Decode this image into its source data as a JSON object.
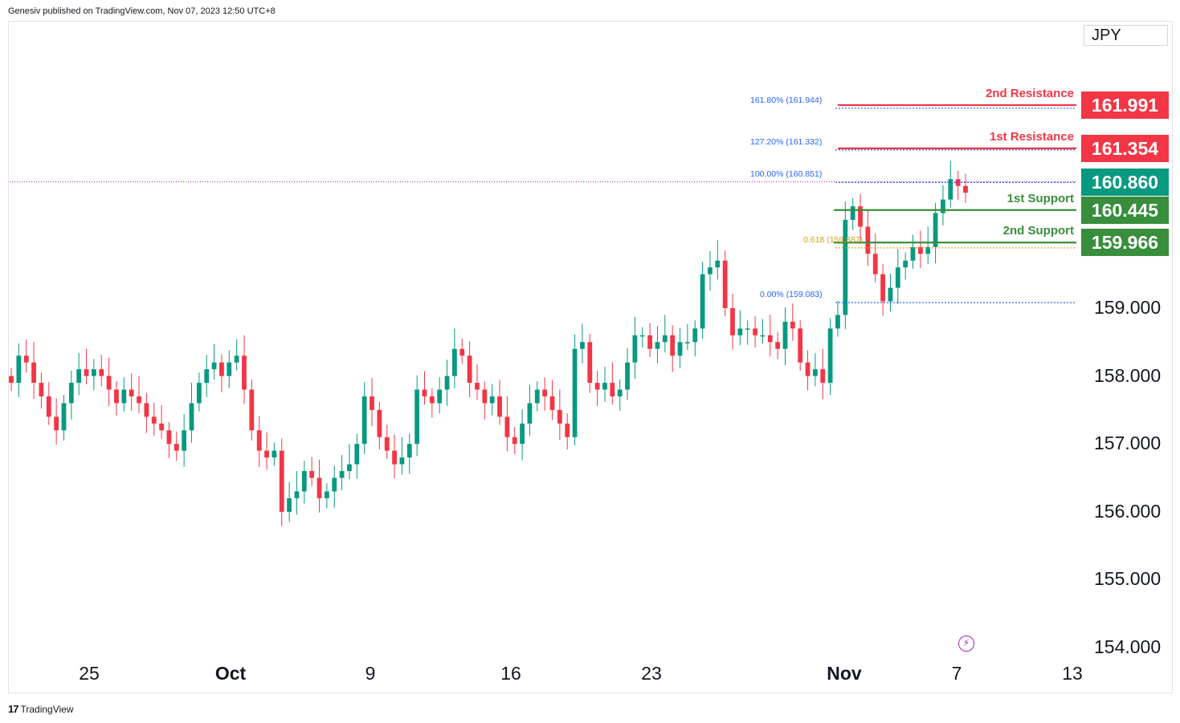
{
  "header": {
    "publisher_text": "Genesiv published on TradingView.com, Nov 07, 2023 12:50 UTC+8"
  },
  "footer": {
    "logo_text": "TradingView",
    "logo_mark": "17"
  },
  "currency": "JPY",
  "colors": {
    "up": "#089981",
    "down": "#f23645",
    "resistance": "#f23645",
    "support": "#388e3c",
    "fib": "#2962ff",
    "fib_gold": "#d4a017",
    "current": "#089981"
  },
  "chart_data": {
    "type": "candlestick",
    "ylim": [
      153.7,
      163.4
    ],
    "y_ticks": [
      "159.000",
      "158.000",
      "157.000",
      "156.000",
      "155.000",
      "154.000"
    ],
    "y_tick_values": [
      159,
      158,
      157,
      156,
      155,
      154
    ],
    "x_ticks": [
      "25",
      "Oct",
      "9",
      "16",
      "23",
      "Nov",
      "7",
      "13"
    ],
    "x_tick_bold": [
      false,
      true,
      false,
      false,
      false,
      true,
      false,
      false
    ],
    "current_price": "160.860",
    "current_price_value": 160.86,
    "levels": [
      {
        "name": "2nd Resistance",
        "value": "161.991",
        "numeric": 161.991,
        "kind": "resistance"
      },
      {
        "name": "1st Resistance",
        "value": "161.354",
        "numeric": 161.354,
        "kind": "resistance"
      },
      {
        "name": "1st Support",
        "value": "160.445",
        "numeric": 160.445,
        "kind": "support"
      },
      {
        "name": "2nd Support",
        "value": "159.966",
        "numeric": 159.966,
        "kind": "support"
      }
    ],
    "fibonacci": [
      {
        "label": "161.80% (161.944)",
        "value": 161.944
      },
      {
        "label": "127.20% (161.332)",
        "value": 161.332
      },
      {
        "label": "100.00% (160.851)",
        "value": 160.851
      },
      {
        "label": "0.618 (159.887)",
        "value": 159.887
      },
      {
        "label": "0.00% (159.083)",
        "value": 159.083
      }
    ],
    "closes": [
      157.9,
      158.3,
      158.2,
      157.9,
      157.7,
      157.4,
      157.2,
      157.6,
      157.9,
      158.1,
      158.0,
      158.1,
      158.0,
      157.8,
      157.6,
      157.8,
      157.7,
      157.6,
      157.4,
      157.3,
      157.2,
      157.0,
      156.9,
      157.2,
      157.6,
      157.9,
      158.1,
      158.2,
      158.0,
      158.2,
      158.3,
      157.8,
      157.2,
      156.9,
      156.8,
      156.9,
      156.0,
      156.2,
      156.3,
      156.6,
      156.5,
      156.2,
      156.3,
      156.5,
      156.6,
      156.7,
      157.0,
      157.7,
      157.5,
      157.1,
      156.9,
      156.7,
      156.8,
      157.0,
      157.8,
      157.7,
      157.6,
      157.8,
      158.0,
      158.4,
      158.3,
      157.9,
      157.8,
      157.6,
      157.7,
      157.4,
      157.1,
      157.0,
      157.3,
      157.6,
      157.8,
      157.7,
      157.5,
      157.3,
      157.1,
      158.4,
      158.5,
      157.9,
      157.8,
      157.9,
      157.7,
      157.8,
      158.2,
      158.6,
      158.6,
      158.4,
      158.5,
      158.6,
      158.3,
      158.5,
      158.5,
      158.7,
      159.5,
      159.6,
      159.7,
      159.0,
      158.6,
      158.7,
      158.7,
      158.6,
      158.6,
      158.5,
      158.4,
      158.8,
      158.7,
      158.2,
      158.0,
      158.1,
      157.9,
      158.7,
      158.9,
      160.3,
      160.5,
      160.2,
      159.8,
      159.5,
      159.1,
      159.3,
      159.6,
      159.7,
      159.9,
      159.8,
      159.9,
      160.4,
      160.6,
      160.9,
      160.8,
      160.7
    ]
  }
}
